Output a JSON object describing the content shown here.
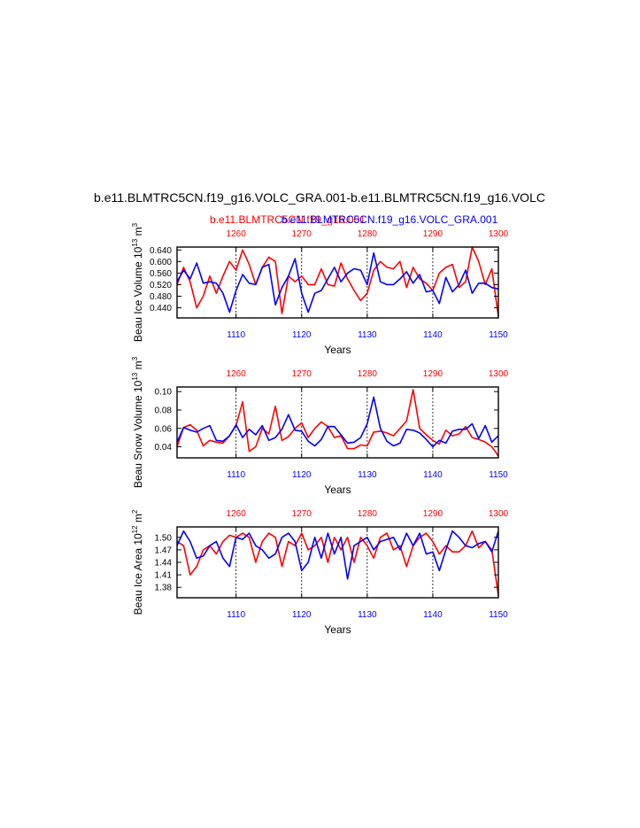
{
  "figure": {
    "main_title": "b.e11.BLMTRC5CN.f19_g16.VOLC_GRA.001-b.e11.BLMTRC5CN.f19_g16.VOLC",
    "legend_red": "b.e11.BLMTRC5CN.f19_g16.001",
    "legend_blue": "b.e11.BLMTRC5CN.f19_g16.VOLC_GRA.001",
    "colors": {
      "red": "#ff0000",
      "blue": "#0000ff",
      "axis": "#000000"
    }
  },
  "chart_data": [
    {
      "type": "line",
      "ylabel": "Beau Ice Volume 10",
      "ylabel_exp": "13",
      "ylabel_unit": "m",
      "ylabel_unit_exp": "3",
      "xlabel": "Years",
      "ylim": [
        0.405,
        0.65
      ],
      "yticks": [
        0.44,
        0.48,
        0.52,
        0.56,
        0.6,
        0.64
      ],
      "ytick_labels": [
        "0.440",
        "0.480",
        "0.520",
        "0.560",
        "0.600",
        "0.640"
      ],
      "x_bottom_range": [
        1101,
        1150
      ],
      "x_bottom_ticks": [
        1110,
        1120,
        1130,
        1140,
        1150
      ],
      "x_top_range": [
        1251,
        1300
      ],
      "x_top_ticks": [
        1260,
        1270,
        1280,
        1290,
        1300
      ],
      "vlines": [
        1110,
        1120,
        1130,
        1140
      ],
      "series": [
        {
          "color": "red",
          "axis": "top",
          "values": [
            0.52,
            0.58,
            0.53,
            0.44,
            0.48,
            0.55,
            0.49,
            0.55,
            0.6,
            0.57,
            0.64,
            0.59,
            0.52,
            0.58,
            0.615,
            0.6,
            0.42,
            0.55,
            0.53,
            0.55,
            0.52,
            0.52,
            0.575,
            0.52,
            0.515,
            0.595,
            0.54,
            0.5,
            0.465,
            0.49,
            0.57,
            0.6,
            0.58,
            0.575,
            0.6,
            0.51,
            0.58,
            0.54,
            0.525,
            0.5,
            0.56,
            0.58,
            0.59,
            0.51,
            0.53,
            0.65,
            0.6,
            0.52,
            0.575,
            0.41
          ]
        },
        {
          "color": "blue",
          "axis": "bottom",
          "values": [
            0.53,
            0.57,
            0.54,
            0.595,
            0.525,
            0.53,
            0.525,
            0.49,
            0.425,
            0.5,
            0.555,
            0.525,
            0.52,
            0.58,
            0.59,
            0.45,
            0.51,
            0.55,
            0.61,
            0.49,
            0.425,
            0.49,
            0.5,
            0.54,
            0.58,
            0.53,
            0.56,
            0.575,
            0.57,
            0.52,
            0.63,
            0.53,
            0.52,
            0.52,
            0.54,
            0.565,
            0.525,
            0.555,
            0.495,
            0.5,
            0.455,
            0.545,
            0.495,
            0.52,
            0.57,
            0.49,
            0.525,
            0.525,
            0.51,
            0.505
          ]
        }
      ]
    },
    {
      "type": "line",
      "ylabel": "Beau Snow Volume 10",
      "ylabel_exp": "13",
      "ylabel_unit": "m",
      "ylabel_unit_exp": "3",
      "xlabel": "Years",
      "ylim": [
        0.028,
        0.105
      ],
      "yticks": [
        0.04,
        0.06,
        0.08,
        0.1
      ],
      "ytick_labels": [
        "0.04",
        "0.06",
        "0.08",
        "0.10"
      ],
      "x_bottom_range": [
        1101,
        1150
      ],
      "x_bottom_ticks": [
        1110,
        1120,
        1130,
        1140,
        1150
      ],
      "x_top_range": [
        1251,
        1300
      ],
      "x_top_ticks": [
        1260,
        1270,
        1280,
        1290,
        1300
      ],
      "vlines": [
        1110,
        1120,
        1130,
        1140
      ],
      "series": [
        {
          "color": "red",
          "axis": "top",
          "values": [
            0.04,
            0.061,
            0.064,
            0.058,
            0.041,
            0.047,
            0.045,
            0.044,
            0.052,
            0.063,
            0.089,
            0.035,
            0.04,
            0.06,
            0.054,
            0.084,
            0.047,
            0.051,
            0.06,
            0.066,
            0.05,
            0.06,
            0.067,
            0.062,
            0.05,
            0.052,
            0.038,
            0.038,
            0.042,
            0.041,
            0.056,
            0.057,
            0.055,
            0.052,
            0.06,
            0.068,
            0.102,
            0.06,
            0.053,
            0.047,
            0.043,
            0.058,
            0.052,
            0.054,
            0.062,
            0.05,
            0.048,
            0.045,
            0.04,
            0.03
          ]
        },
        {
          "color": "blue",
          "axis": "bottom",
          "values": [
            0.045,
            0.061,
            0.058,
            0.056,
            0.06,
            0.063,
            0.047,
            0.046,
            0.052,
            0.064,
            0.05,
            0.059,
            0.053,
            0.063,
            0.047,
            0.05,
            0.059,
            0.075,
            0.058,
            0.057,
            0.046,
            0.041,
            0.048,
            0.062,
            0.062,
            0.053,
            0.044,
            0.045,
            0.05,
            0.065,
            0.094,
            0.06,
            0.046,
            0.041,
            0.044,
            0.059,
            0.058,
            0.055,
            0.048,
            0.04,
            0.047,
            0.044,
            0.057,
            0.059,
            0.059,
            0.065,
            0.049,
            0.063,
            0.045,
            0.052
          ]
        }
      ]
    },
    {
      "type": "line",
      "ylabel": "Beau Ice Area 10",
      "ylabel_exp": "12",
      "ylabel_unit": "m",
      "ylabel_unit_exp": "2",
      "xlabel": "Years",
      "ylim": [
        1.355,
        1.525
      ],
      "yticks": [
        1.38,
        1.41,
        1.44,
        1.47,
        1.5
      ],
      "ytick_labels": [
        "1.38",
        "1.41",
        "1.44",
        "1.47",
        "1.50"
      ],
      "x_bottom_range": [
        1101,
        1150
      ],
      "x_bottom_ticks": [
        1110,
        1120,
        1130,
        1140,
        1150
      ],
      "x_top_range": [
        1251,
        1300
      ],
      "x_top_ticks": [
        1260,
        1270,
        1280,
        1290,
        1300
      ],
      "vlines": [
        1110,
        1120,
        1130,
        1140
      ],
      "series": [
        {
          "color": "red",
          "axis": "top",
          "values": [
            1.49,
            1.48,
            1.41,
            1.43,
            1.47,
            1.48,
            1.46,
            1.49,
            1.505,
            1.5,
            1.51,
            1.5,
            1.44,
            1.49,
            1.51,
            1.5,
            1.43,
            1.49,
            1.48,
            1.51,
            1.47,
            1.48,
            1.5,
            1.44,
            1.5,
            1.47,
            1.5,
            1.44,
            1.5,
            1.48,
            1.45,
            1.5,
            1.51,
            1.47,
            1.48,
            1.43,
            1.48,
            1.5,
            1.51,
            1.49,
            1.46,
            1.48,
            1.465,
            1.465,
            1.48,
            1.515,
            1.475,
            1.49,
            1.47,
            1.36
          ]
        },
        {
          "color": "blue",
          "axis": "bottom",
          "values": [
            1.48,
            1.515,
            1.49,
            1.45,
            1.455,
            1.48,
            1.49,
            1.45,
            1.43,
            1.5,
            1.495,
            1.51,
            1.48,
            1.47,
            1.45,
            1.46,
            1.5,
            1.51,
            1.49,
            1.42,
            1.44,
            1.5,
            1.45,
            1.51,
            1.46,
            1.5,
            1.4,
            1.48,
            1.49,
            1.5,
            1.47,
            1.49,
            1.495,
            1.5,
            1.47,
            1.51,
            1.48,
            1.51,
            1.46,
            1.465,
            1.42,
            1.47,
            1.515,
            1.5,
            1.48,
            1.475,
            1.485,
            1.49,
            1.465,
            1.515
          ]
        }
      ]
    }
  ]
}
